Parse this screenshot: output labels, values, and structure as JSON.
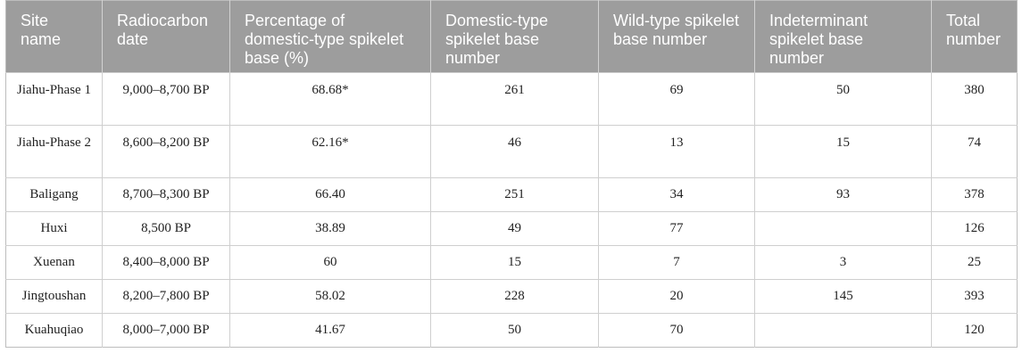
{
  "table": {
    "headers": [
      "Site name",
      "Radiocarbon date",
      "Percentage of domestic-type spikelet base (%)",
      "Domestic-type spikelet base number",
      "Wild-type spikelet base number",
      "Indeterminant spikelet base number",
      "Total number"
    ],
    "rows": [
      [
        "Jiahu-Phase 1",
        "9,000–8,700 BP",
        "68.68*",
        "261",
        "69",
        "50",
        "380"
      ],
      [
        "Jiahu-Phase 2",
        "8,600–8,200 BP",
        "62.16*",
        "46",
        "13",
        "15",
        "74"
      ],
      [
        "Baligang",
        "8,700–8,300 BP",
        "66.40",
        "251",
        "34",
        "93",
        "378"
      ],
      [
        "Huxi",
        "8,500 BP",
        "38.89",
        "49",
        "77",
        "",
        "126"
      ],
      [
        "Xuenan",
        "8,400–8,000 BP",
        "60",
        "15",
        "7",
        "3",
        "25"
      ],
      [
        "Jingtoushan",
        "8,200–7,800 BP",
        "58.02",
        "228",
        "20",
        "145",
        "393"
      ],
      [
        "Kuahuqiao",
        "8,000–7,000 BP",
        "41.67",
        "50",
        "70",
        "",
        "120"
      ]
    ]
  }
}
